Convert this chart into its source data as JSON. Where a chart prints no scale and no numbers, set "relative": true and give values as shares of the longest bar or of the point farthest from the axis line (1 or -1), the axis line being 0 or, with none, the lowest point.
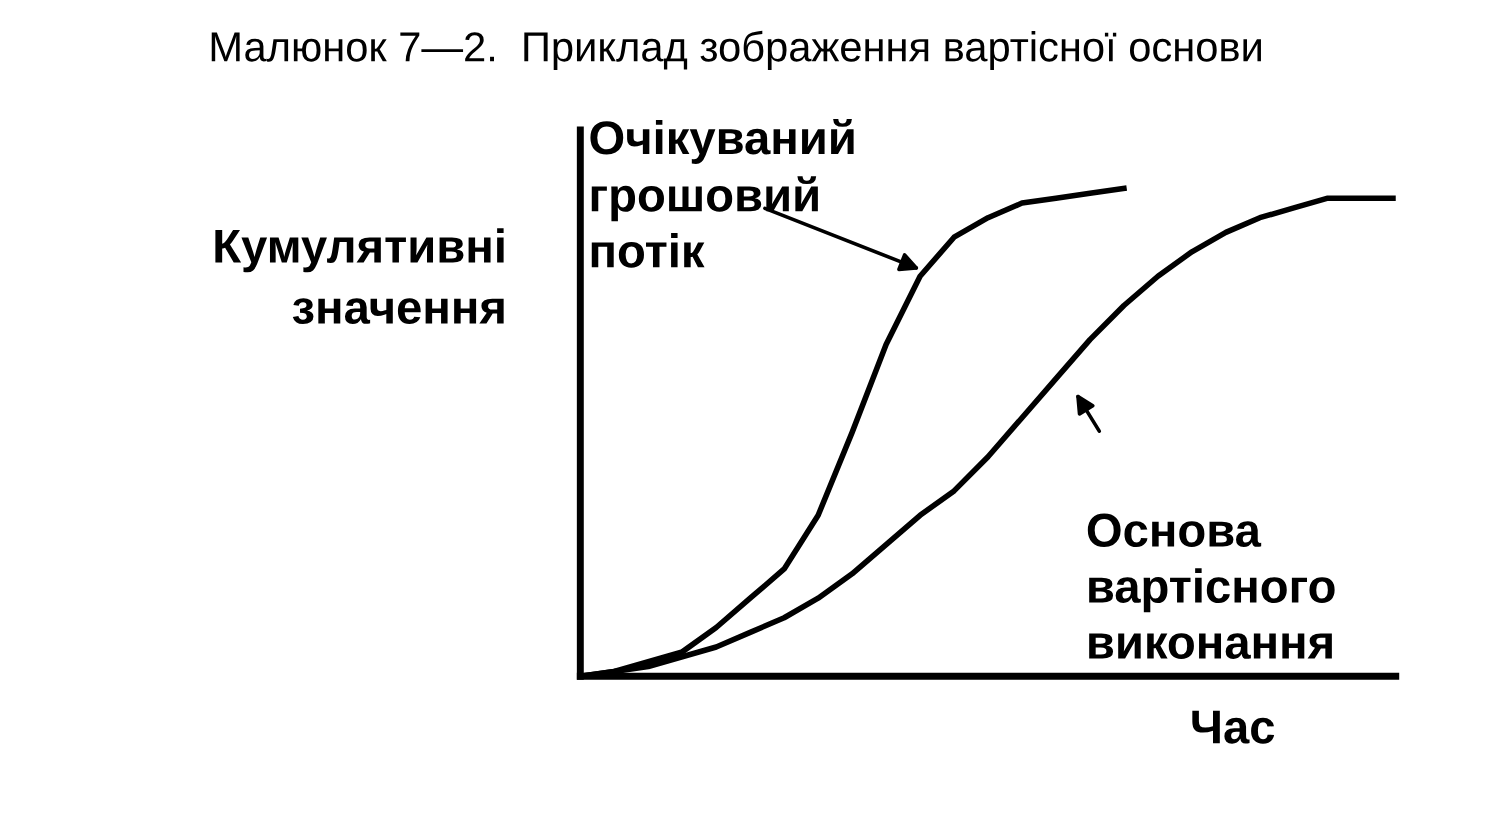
{
  "chart_data": {
    "type": "line",
    "title": "Малюнок 7—2.  Приклад зображення вартісної основи",
    "xlabel": "Час",
    "ylabel": "Кумулятивні\nзначення",
    "relative": true,
    "legend": false,
    "grid": false,
    "marker": "none",
    "line_style": "solid",
    "categories": [
      null,
      null,
      null,
      null,
      null,
      null,
      null,
      null,
      null,
      null,
      null,
      null,
      null,
      null,
      null,
      null,
      null,
      null,
      null,
      null,
      null,
      null,
      null,
      null,
      null
    ],
    "series": [
      {
        "name": "Очікуваний\nгрошовий\nпотік",
        "color": "#000000",
        "values": [
          0,
          0.01,
          0.03,
          0.05,
          0.1,
          0.16,
          0.22,
          0.33,
          0.5,
          0.68,
          0.82,
          0.9,
          0.94,
          0.97,
          0.98,
          0.99,
          1.0,
          null,
          null,
          null,
          null,
          null,
          null,
          null,
          null
        ]
      },
      {
        "name": "Основа\nвартісного\nвиконання",
        "color": "#000000",
        "values": [
          0,
          0.01,
          0.02,
          0.04,
          0.06,
          0.09,
          0.12,
          0.16,
          0.21,
          0.27,
          0.33,
          0.38,
          0.45,
          0.53,
          0.61,
          0.69,
          0.76,
          0.82,
          0.87,
          0.91,
          0.94,
          0.96,
          0.98,
          0.98,
          0.98
        ]
      }
    ]
  }
}
